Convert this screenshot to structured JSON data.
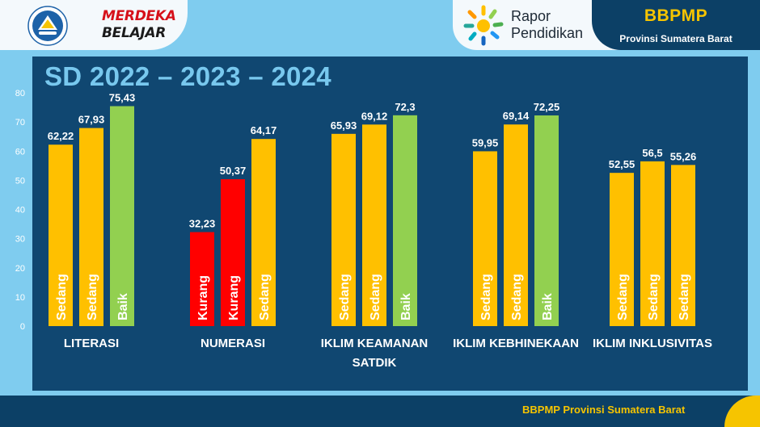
{
  "header": {
    "brand_line1": "MERDEKA",
    "brand_line2": "BELAJAR",
    "rapor_line1": "Rapor",
    "rapor_line2": "Pendidikan",
    "org_title": "BBPMP",
    "org_subtitle": "Provinsi Sumatera Barat"
  },
  "footer": {
    "text": "BBPMP Provinsi Sumatera Barat"
  },
  "colors": {
    "sedang": "#ffc000",
    "kurang": "#ff0000",
    "baik": "#92d050",
    "panel": "#104771",
    "accent_yellow": "#f6c400"
  },
  "chart_data": {
    "type": "bar",
    "title": "SD 2022 – 2023 – 2024",
    "ylim": [
      0,
      80
    ],
    "yticks": [
      "0",
      "10",
      "20",
      "30",
      "40",
      "50",
      "60",
      "70",
      "80"
    ],
    "categories": [
      [
        "LITERASI"
      ],
      [
        "NUMERASI"
      ],
      [
        "IKLIM KEAMANAN",
        "SATDIK"
      ],
      [
        "IKLIM KEBHINEKAAN"
      ],
      [
        "IKLIM INKLUSIVITAS"
      ]
    ],
    "groups": [
      {
        "values": [
          62.22,
          67.93,
          75.43
        ],
        "labels": [
          "62,22",
          "67,93",
          "75,43"
        ],
        "status": [
          "Sedang",
          "Sedang",
          "Baik"
        ]
      },
      {
        "values": [
          32.23,
          50.37,
          64.17
        ],
        "labels": [
          "32,23",
          "50,37",
          "64,17"
        ],
        "status": [
          "Kurang",
          "Kurang",
          "Sedang"
        ]
      },
      {
        "values": [
          65.93,
          69.12,
          72.3
        ],
        "labels": [
          "65,93",
          "69,12",
          "72,3"
        ],
        "status": [
          "Sedang",
          "Sedang",
          "Baik"
        ]
      },
      {
        "values": [
          59.95,
          69.14,
          72.25
        ],
        "labels": [
          "59,95",
          "69,14",
          "72,25"
        ],
        "status": [
          "Sedang",
          "Sedang",
          "Baik"
        ]
      },
      {
        "values": [
          52.55,
          56.5,
          55.26
        ],
        "labels": [
          "52,55",
          "56,5",
          "55,26"
        ],
        "status": [
          "Sedang",
          "Sedang",
          "Sedang"
        ]
      }
    ]
  }
}
